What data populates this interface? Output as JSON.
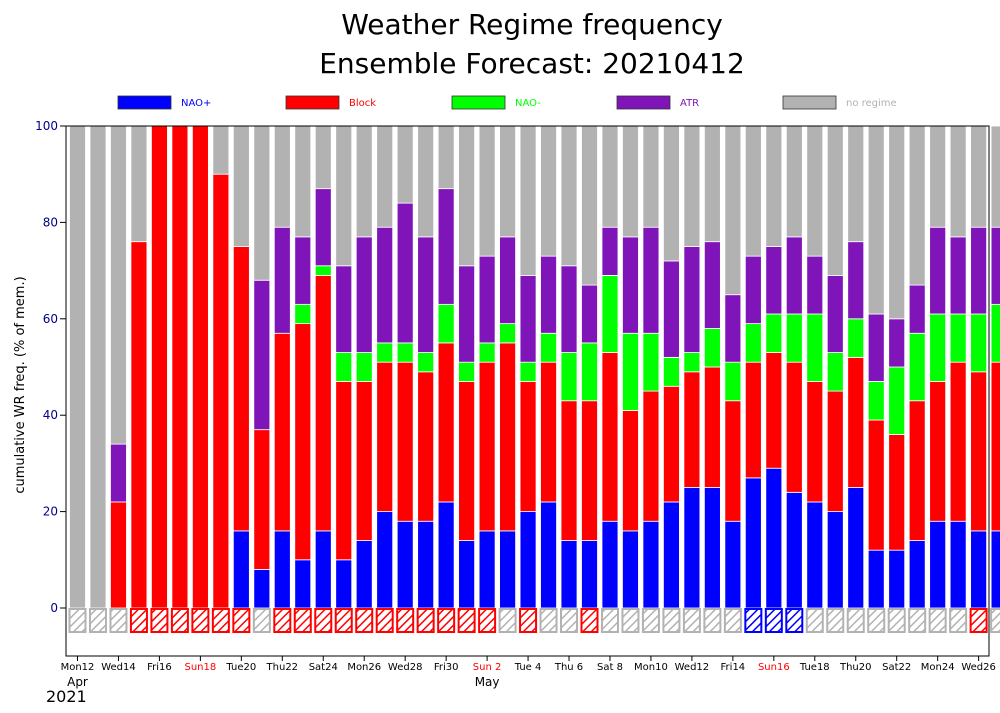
{
  "chart_data": {
    "type": "bar",
    "stacked": true,
    "title_line1": "Weather Regime frequency",
    "title_line2": "Ensemble Forecast: 20210412",
    "ylabel": "cumulative WR freq. (% of mem.)",
    "ylim": [
      -10,
      100
    ],
    "yticks": [
      0,
      20,
      40,
      60,
      80,
      100
    ],
    "grid": false,
    "legend_position": "top",
    "year_label": "2021",
    "month_labels": [
      {
        "text": "Apr",
        "day_index": 0
      },
      {
        "text": "May",
        "day_index": 20
      }
    ],
    "x_ticks": [
      {
        "day_index": 0,
        "text": "Mon12",
        "weekend": false
      },
      {
        "day_index": 2,
        "text": "Wed14",
        "weekend": false
      },
      {
        "day_index": 4,
        "text": "Fri16",
        "weekend": false
      },
      {
        "day_index": 6,
        "text": "Sun18",
        "weekend": true
      },
      {
        "day_index": 8,
        "text": "Tue20",
        "weekend": false
      },
      {
        "day_index": 10,
        "text": "Thu22",
        "weekend": false
      },
      {
        "day_index": 12,
        "text": "Sat24",
        "weekend": false
      },
      {
        "day_index": 14,
        "text": "Mon26",
        "weekend": false
      },
      {
        "day_index": 16,
        "text": "Wed28",
        "weekend": false
      },
      {
        "day_index": 18,
        "text": "Fri30",
        "weekend": false
      },
      {
        "day_index": 20,
        "text": "Sun 2",
        "weekend": true
      },
      {
        "day_index": 22,
        "text": "Tue 4",
        "weekend": false
      },
      {
        "day_index": 24,
        "text": "Thu 6",
        "weekend": false
      },
      {
        "day_index": 26,
        "text": "Sat 8",
        "weekend": false
      },
      {
        "day_index": 28,
        "text": "Mon10",
        "weekend": false
      },
      {
        "day_index": 30,
        "text": "Wed12",
        "weekend": false
      },
      {
        "day_index": 32,
        "text": "Fri14",
        "weekend": false
      },
      {
        "day_index": 34,
        "text": "Sun16",
        "weekend": true
      },
      {
        "day_index": 36,
        "text": "Tue18",
        "weekend": false
      },
      {
        "day_index": 38,
        "text": "Thu20",
        "weekend": false
      },
      {
        "day_index": 40,
        "text": "Sat22",
        "weekend": false
      },
      {
        "day_index": 42,
        "text": "Mon24",
        "weekend": false
      },
      {
        "day_index": 44,
        "text": "Wed26",
        "weekend": false
      }
    ],
    "series": [
      {
        "name": "NAO+",
        "color": "#0000ff",
        "values": [
          0,
          0,
          0,
          0,
          0,
          0,
          0,
          0,
          16,
          8,
          16,
          10,
          16,
          10,
          14,
          20,
          18,
          18,
          22,
          14,
          16,
          16,
          20,
          22,
          14,
          14,
          18,
          16,
          18,
          22,
          25,
          25,
          18,
          27,
          29,
          24,
          22,
          20,
          25,
          12,
          12,
          14,
          18,
          18,
          16,
          16
        ]
      },
      {
        "name": "Block",
        "color": "#ff0000",
        "values": [
          0,
          0,
          22,
          76,
          100,
          100,
          100,
          90,
          59,
          29,
          41,
          49,
          53,
          37,
          33,
          31,
          33,
          31,
          33,
          33,
          35,
          39,
          27,
          29,
          29,
          29,
          35,
          25,
          27,
          24,
          24,
          25,
          25,
          24,
          24,
          27,
          25,
          25,
          27,
          27,
          24,
          29,
          29,
          33,
          33,
          35
        ]
      },
      {
        "name": "NAO-",
        "color": "#00ff00",
        "values": [
          0,
          0,
          0,
          0,
          0,
          0,
          0,
          0,
          0,
          0,
          0,
          4,
          2,
          6,
          6,
          4,
          4,
          4,
          8,
          4,
          4,
          4,
          4,
          6,
          10,
          12,
          16,
          16,
          12,
          6,
          4,
          8,
          8,
          8,
          8,
          10,
          14,
          8,
          8,
          8,
          14,
          14,
          14,
          10,
          12,
          12
        ]
      },
      {
        "name": "ATR",
        "color": "#7f14b8",
        "values": [
          0,
          0,
          12,
          0,
          0,
          0,
          0,
          0,
          0,
          31,
          22,
          14,
          16,
          18,
          24,
          24,
          29,
          24,
          24,
          20,
          18,
          18,
          18,
          16,
          18,
          12,
          10,
          20,
          22,
          20,
          22,
          18,
          14,
          14,
          14,
          16,
          12,
          16,
          16,
          14,
          10,
          10,
          18,
          16,
          18,
          16
        ]
      },
      {
        "name": "no regime",
        "color": "#b2b2b2",
        "values": [
          100,
          100,
          66,
          24,
          0,
          0,
          0,
          10,
          25,
          32,
          21,
          23,
          13,
          29,
          23,
          21,
          16,
          23,
          13,
          29,
          27,
          23,
          31,
          27,
          29,
          33,
          21,
          23,
          21,
          28,
          25,
          24,
          35,
          27,
          25,
          23,
          27,
          31,
          24,
          39,
          40,
          33,
          21,
          23,
          21,
          21
        ]
      }
    ],
    "dominant_regime_markers": [
      "no regime",
      "no regime",
      "no regime",
      "Block",
      "Block",
      "Block",
      "Block",
      "Block",
      "Block",
      "no regime",
      "Block",
      "Block",
      "Block",
      "Block",
      "Block",
      "Block",
      "Block",
      "Block",
      "Block",
      "Block",
      "Block",
      "no regime",
      "Block",
      "no regime",
      "no regime",
      "Block",
      "no regime",
      "no regime",
      "no regime",
      "no regime",
      "no regime",
      "no regime",
      "no regime",
      "NAO+",
      "NAO+",
      "NAO+",
      "no regime",
      "no regime",
      "no regime",
      "no regime",
      "no regime",
      "no regime",
      "no regime",
      "no regime",
      "Block",
      "no regime"
    ]
  }
}
